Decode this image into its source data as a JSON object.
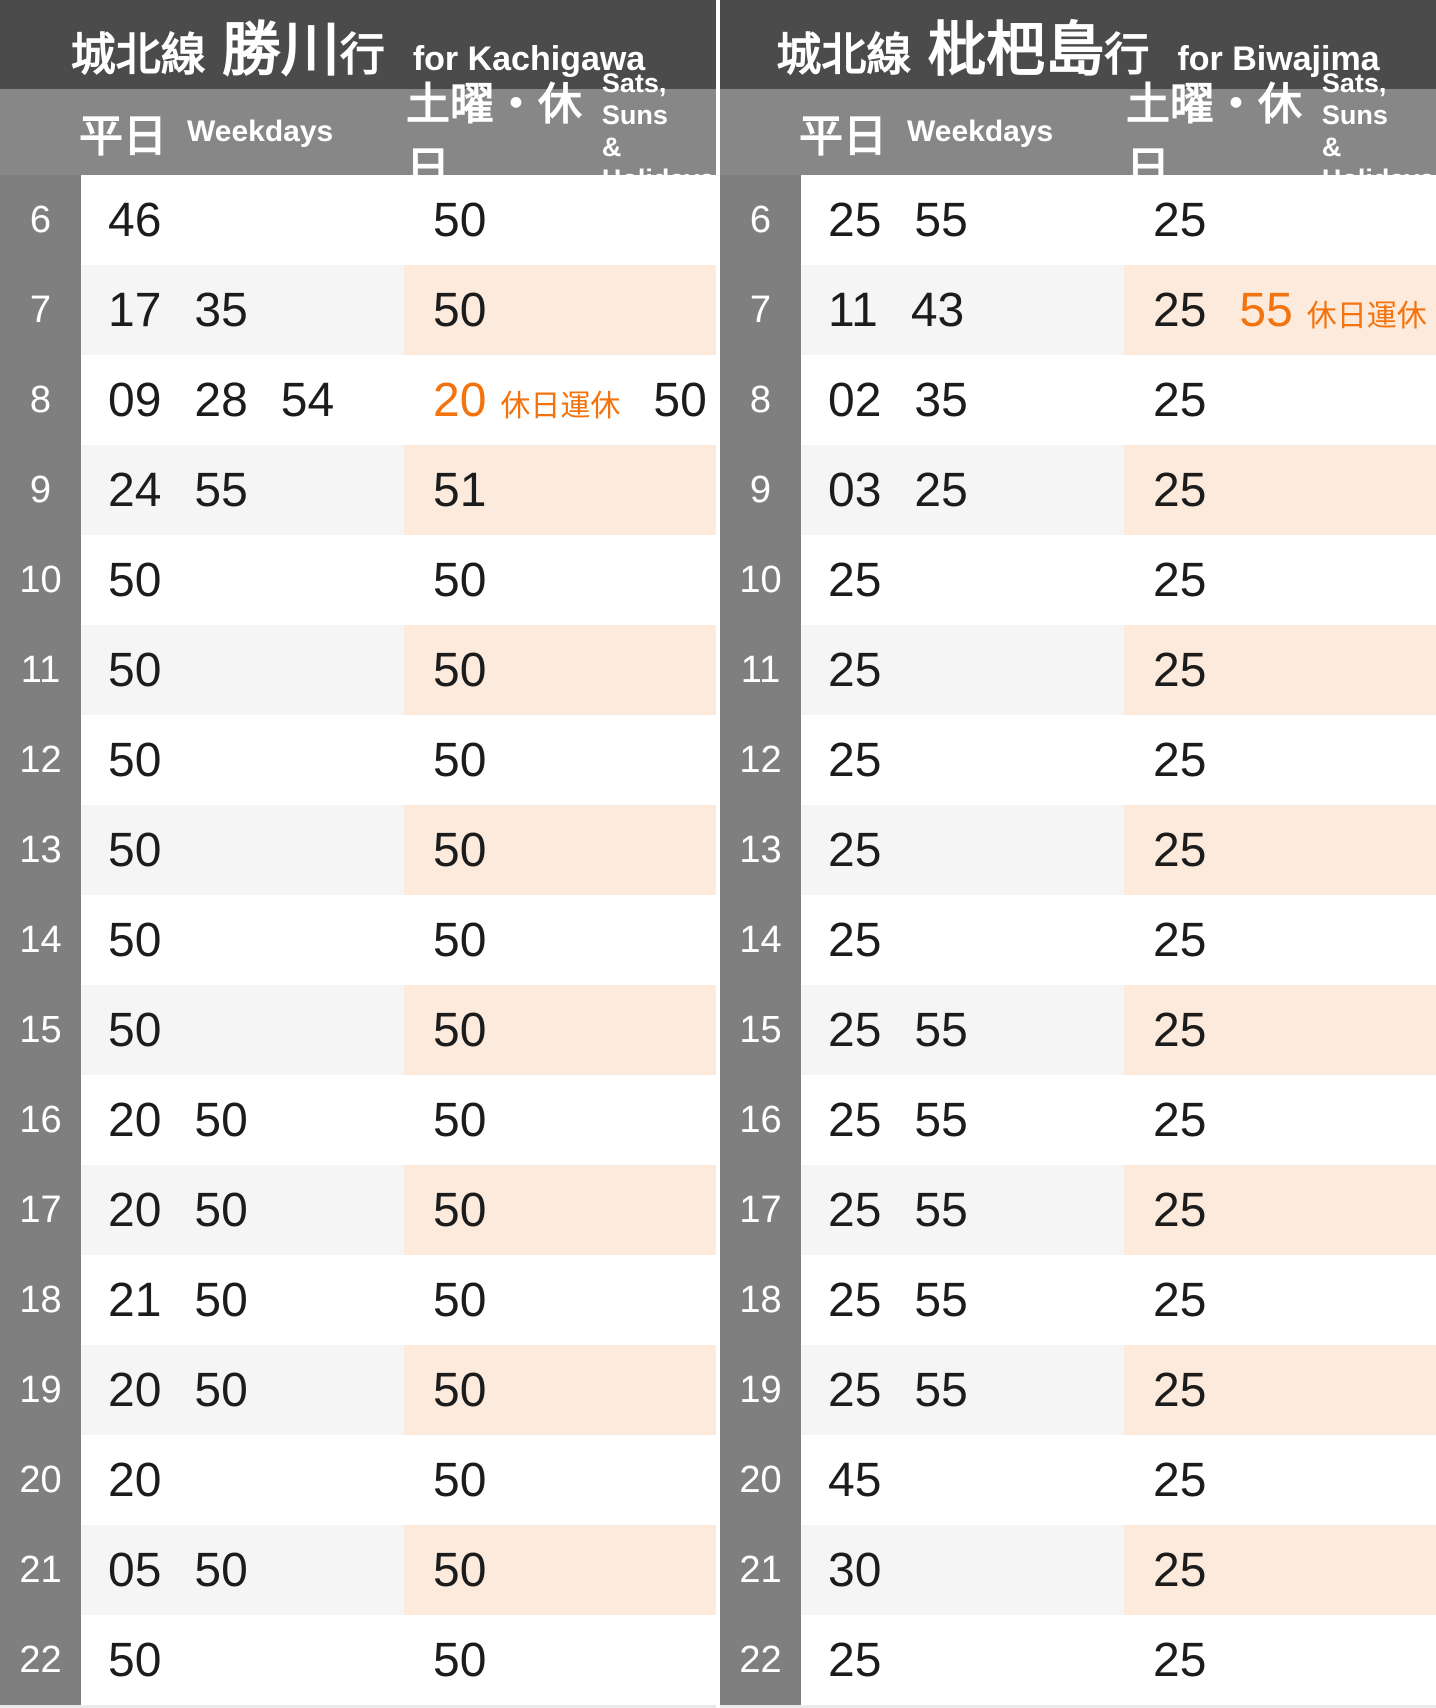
{
  "colors": {
    "header_bg": "#4b4b4b",
    "subheader_bg": "#878787",
    "hour_col_bg": "#7f7f7f",
    "stripe_gray": "#f5f5f5",
    "stripe_peach": "#fcebdc",
    "time_text": "#1c1c1c",
    "accent_orange": "#f3730f",
    "bottom_strip": "#eaeaea"
  },
  "panels": [
    {
      "line_name": "城北線",
      "destination": "勝川",
      "destination_suffix": "行",
      "destination_en": "for Kachigawa",
      "weekday_label_jp": "平日",
      "weekday_label_en": "Weekdays",
      "holiday_label_jp": "土曜・休日",
      "holiday_label_en_line1": "Sats, Suns",
      "holiday_label_en_line2": "& Holidays",
      "rows": [
        {
          "hour": "6",
          "weekday": [
            {
              "m": "46"
            }
          ],
          "holiday": [
            {
              "m": "50"
            }
          ]
        },
        {
          "hour": "7",
          "weekday": [
            {
              "m": "17"
            },
            {
              "m": "35"
            }
          ],
          "holiday": [
            {
              "m": "50"
            }
          ]
        },
        {
          "hour": "8",
          "weekday": [
            {
              "m": "09"
            },
            {
              "m": "28"
            },
            {
              "m": "54"
            }
          ],
          "holiday": [
            {
              "m": "20",
              "note": "休日運休"
            },
            {
              "m": "50"
            }
          ]
        },
        {
          "hour": "9",
          "weekday": [
            {
              "m": "24"
            },
            {
              "m": "55"
            }
          ],
          "holiday": [
            {
              "m": "51"
            }
          ]
        },
        {
          "hour": "10",
          "weekday": [
            {
              "m": "50"
            }
          ],
          "holiday": [
            {
              "m": "50"
            }
          ]
        },
        {
          "hour": "11",
          "weekday": [
            {
              "m": "50"
            }
          ],
          "holiday": [
            {
              "m": "50"
            }
          ]
        },
        {
          "hour": "12",
          "weekday": [
            {
              "m": "50"
            }
          ],
          "holiday": [
            {
              "m": "50"
            }
          ]
        },
        {
          "hour": "13",
          "weekday": [
            {
              "m": "50"
            }
          ],
          "holiday": [
            {
              "m": "50"
            }
          ]
        },
        {
          "hour": "14",
          "weekday": [
            {
              "m": "50"
            }
          ],
          "holiday": [
            {
              "m": "50"
            }
          ]
        },
        {
          "hour": "15",
          "weekday": [
            {
              "m": "50"
            }
          ],
          "holiday": [
            {
              "m": "50"
            }
          ]
        },
        {
          "hour": "16",
          "weekday": [
            {
              "m": "20"
            },
            {
              "m": "50"
            }
          ],
          "holiday": [
            {
              "m": "50"
            }
          ]
        },
        {
          "hour": "17",
          "weekday": [
            {
              "m": "20"
            },
            {
              "m": "50"
            }
          ],
          "holiday": [
            {
              "m": "50"
            }
          ]
        },
        {
          "hour": "18",
          "weekday": [
            {
              "m": "21"
            },
            {
              "m": "50"
            }
          ],
          "holiday": [
            {
              "m": "50"
            }
          ]
        },
        {
          "hour": "19",
          "weekday": [
            {
              "m": "20"
            },
            {
              "m": "50"
            }
          ],
          "holiday": [
            {
              "m": "50"
            }
          ]
        },
        {
          "hour": "20",
          "weekday": [
            {
              "m": "20"
            }
          ],
          "holiday": [
            {
              "m": "50"
            }
          ]
        },
        {
          "hour": "21",
          "weekday": [
            {
              "m": "05"
            },
            {
              "m": "50"
            }
          ],
          "holiday": [
            {
              "m": "50"
            }
          ]
        },
        {
          "hour": "22",
          "weekday": [
            {
              "m": "50"
            }
          ],
          "holiday": [
            {
              "m": "50"
            }
          ]
        }
      ]
    },
    {
      "line_name": "城北線",
      "destination": "枇杷島",
      "destination_suffix": "行",
      "destination_en": "for Biwajima",
      "weekday_label_jp": "平日",
      "weekday_label_en": "Weekdays",
      "holiday_label_jp": "土曜・休日",
      "holiday_label_en_line1": "Sats, Suns",
      "holiday_label_en_line2": "& Holidays",
      "rows": [
        {
          "hour": "6",
          "weekday": [
            {
              "m": "25"
            },
            {
              "m": "55"
            }
          ],
          "holiday": [
            {
              "m": "25"
            }
          ]
        },
        {
          "hour": "7",
          "weekday": [
            {
              "m": "11"
            },
            {
              "m": "43"
            }
          ],
          "holiday": [
            {
              "m": "25"
            },
            {
              "m": "55",
              "note": "休日運休"
            }
          ]
        },
        {
          "hour": "8",
          "weekday": [
            {
              "m": "02"
            },
            {
              "m": "35"
            }
          ],
          "holiday": [
            {
              "m": "25"
            }
          ]
        },
        {
          "hour": "9",
          "weekday": [
            {
              "m": "03"
            },
            {
              "m": "25"
            }
          ],
          "holiday": [
            {
              "m": "25"
            }
          ]
        },
        {
          "hour": "10",
          "weekday": [
            {
              "m": "25"
            }
          ],
          "holiday": [
            {
              "m": "25"
            }
          ]
        },
        {
          "hour": "11",
          "weekday": [
            {
              "m": "25"
            }
          ],
          "holiday": [
            {
              "m": "25"
            }
          ]
        },
        {
          "hour": "12",
          "weekday": [
            {
              "m": "25"
            }
          ],
          "holiday": [
            {
              "m": "25"
            }
          ]
        },
        {
          "hour": "13",
          "weekday": [
            {
              "m": "25"
            }
          ],
          "holiday": [
            {
              "m": "25"
            }
          ]
        },
        {
          "hour": "14",
          "weekday": [
            {
              "m": "25"
            }
          ],
          "holiday": [
            {
              "m": "25"
            }
          ]
        },
        {
          "hour": "15",
          "weekday": [
            {
              "m": "25"
            },
            {
              "m": "55"
            }
          ],
          "holiday": [
            {
              "m": "25"
            }
          ]
        },
        {
          "hour": "16",
          "weekday": [
            {
              "m": "25"
            },
            {
              "m": "55"
            }
          ],
          "holiday": [
            {
              "m": "25"
            }
          ]
        },
        {
          "hour": "17",
          "weekday": [
            {
              "m": "25"
            },
            {
              "m": "55"
            }
          ],
          "holiday": [
            {
              "m": "25"
            }
          ]
        },
        {
          "hour": "18",
          "weekday": [
            {
              "m": "25"
            },
            {
              "m": "55"
            }
          ],
          "holiday": [
            {
              "m": "25"
            }
          ]
        },
        {
          "hour": "19",
          "weekday": [
            {
              "m": "25"
            },
            {
              "m": "55"
            }
          ],
          "holiday": [
            {
              "m": "25"
            }
          ]
        },
        {
          "hour": "20",
          "weekday": [
            {
              "m": "45"
            }
          ],
          "holiday": [
            {
              "m": "25"
            }
          ]
        },
        {
          "hour": "21",
          "weekday": [
            {
              "m": "30"
            }
          ],
          "holiday": [
            {
              "m": "25"
            }
          ]
        },
        {
          "hour": "22",
          "weekday": [
            {
              "m": "25"
            }
          ],
          "holiday": [
            {
              "m": "25"
            }
          ]
        }
      ]
    }
  ]
}
